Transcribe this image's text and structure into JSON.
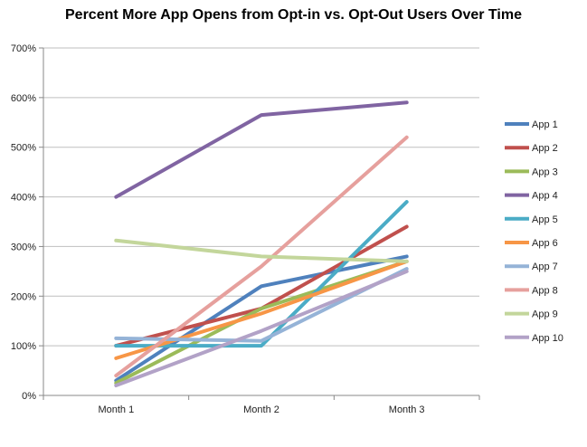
{
  "chart_data": {
    "type": "line",
    "title": "Percent More App Opens from Opt-in vs. Opt-Out Users Over Time",
    "xlabel": "",
    "ylabel": "",
    "categories": [
      "Month 1",
      "Month 2",
      "Month 3"
    ],
    "ylim": [
      0,
      700
    ],
    "y_ticks": [
      0,
      100,
      200,
      300,
      400,
      500,
      600,
      700
    ],
    "y_tick_labels": [
      "0%",
      "100%",
      "200%",
      "300%",
      "400%",
      "500%",
      "600%",
      "700%"
    ],
    "grid": "horizontal",
    "legend_position": "right",
    "series": [
      {
        "name": "App 1",
        "values": [
          30,
          220,
          280
        ],
        "color": "#4f81bd"
      },
      {
        "name": "App 2",
        "values": [
          100,
          175,
          340
        ],
        "color": "#c0504d"
      },
      {
        "name": "App 3",
        "values": [
          25,
          175,
          270
        ],
        "color": "#9bbb59"
      },
      {
        "name": "App 4",
        "values": [
          400,
          565,
          590
        ],
        "color": "#8064a2"
      },
      {
        "name": "App 5",
        "values": [
          100,
          100,
          390
        ],
        "color": "#4bacc6"
      },
      {
        "name": "App 6",
        "values": [
          75,
          165,
          270
        ],
        "color": "#f79646"
      },
      {
        "name": "App 7",
        "values": [
          115,
          110,
          255
        ],
        "color": "#95b3d7"
      },
      {
        "name": "App 8",
        "values": [
          40,
          260,
          520
        ],
        "color": "#e6a09d"
      },
      {
        "name": "App 9",
        "values": [
          312,
          280,
          270
        ],
        "color": "#c3d69b"
      },
      {
        "name": "App 10",
        "values": [
          20,
          130,
          250
        ],
        "color": "#b2a2c7"
      }
    ]
  }
}
